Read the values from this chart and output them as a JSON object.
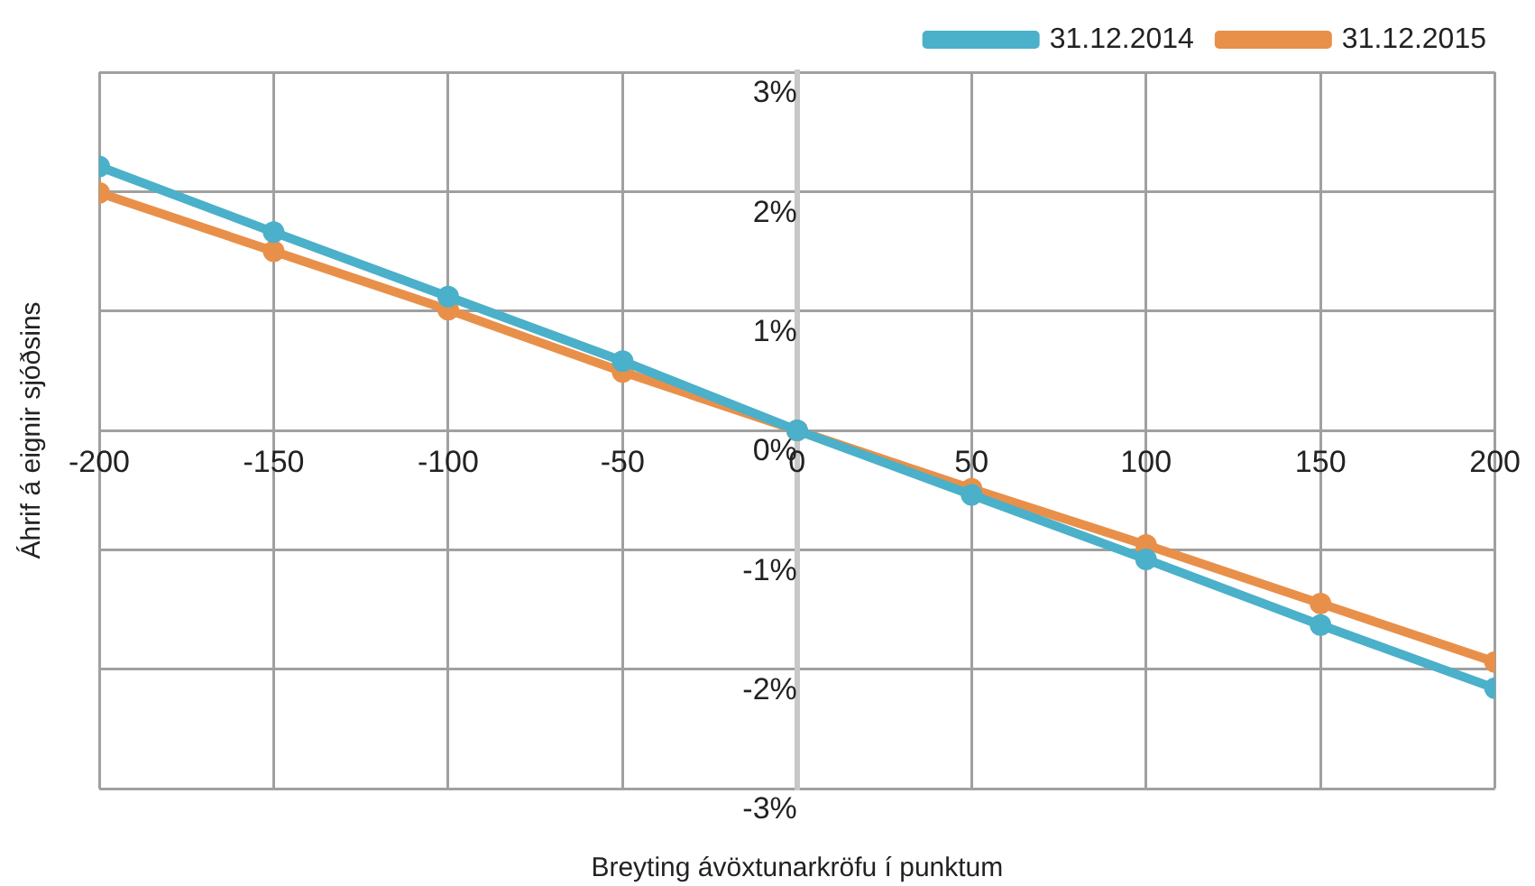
{
  "chart_data": {
    "type": "line",
    "xlabel": "Breyting ávöxtunarkröfu í punktum",
    "ylabel": "Áhrif á eignir sjóðsins",
    "x": [
      -200,
      -150,
      -100,
      -50,
      0,
      50,
      100,
      150,
      200
    ],
    "series": [
      {
        "name": "31.12.2014",
        "color": "#4bb0c9",
        "values": [
          2.21,
          1.66,
          1.12,
          0.58,
          0,
          -0.54,
          -1.08,
          -1.63,
          -2.16
        ]
      },
      {
        "name": "31.12.2015",
        "color": "#e8904a",
        "values": [
          1.99,
          1.5,
          1.01,
          0.49,
          0,
          -0.49,
          -0.96,
          -1.45,
          -1.94
        ]
      }
    ],
    "xlim": [
      -200,
      200
    ],
    "xticks": [
      -200,
      -150,
      -100,
      -50,
      0,
      50,
      100,
      150,
      200
    ],
    "ylim": [
      -3,
      3
    ],
    "yticks": [
      {
        "value": -3,
        "label": "-3%"
      },
      {
        "value": -2,
        "label": "-2%"
      },
      {
        "value": -1,
        "label": "-1%"
      },
      {
        "value": 0,
        "label": "0%"
      },
      {
        "value": 1,
        "label": "1%"
      },
      {
        "value": 2,
        "label": "2%"
      },
      {
        "value": 3,
        "label": "3%"
      }
    ],
    "grid": true,
    "legend": "top right",
    "marker": "circle",
    "line_style": "solid"
  }
}
